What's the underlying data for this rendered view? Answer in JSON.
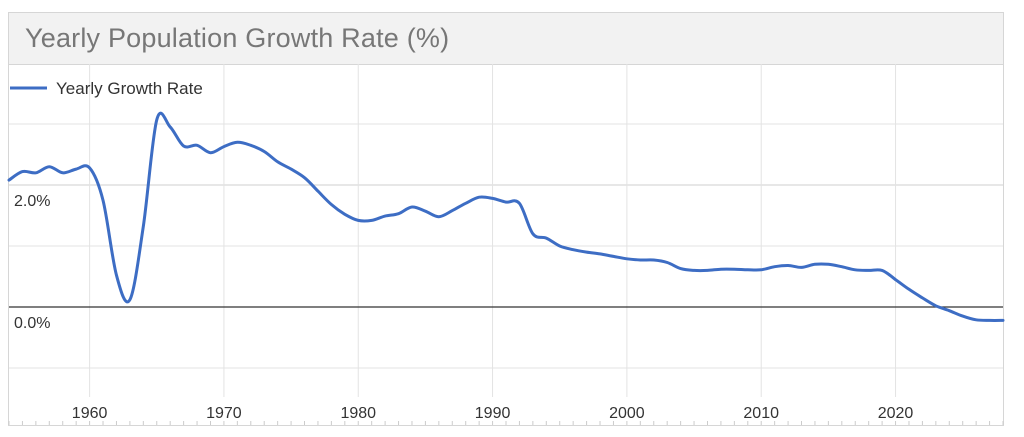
{
  "title": "Yearly Population Growth Rate (%)",
  "colors": {
    "line": "#3d6dc4",
    "grid": "#e3e3e3",
    "grid_major": "#cfcfcf",
    "zero_line": "#333333",
    "text": "#333333"
  },
  "chart_data": {
    "type": "line",
    "title": "Yearly Population Growth Rate (%)",
    "xlabel": "",
    "ylabel": "",
    "legend": {
      "position": "top-left",
      "entries": [
        "Yearly Growth Rate"
      ]
    },
    "grid": true,
    "xlim": [
      1954,
      2028
    ],
    "ylim": [
      -1.0,
      3.1
    ],
    "x_ticks": [
      1960,
      1970,
      1980,
      1990,
      2000,
      2010,
      2020
    ],
    "y_ticks_labeled": [
      {
        "value": 2.0,
        "label": "2.0%"
      },
      {
        "value": 0.0,
        "label": "0.0%"
      }
    ],
    "y_gridlines": [
      -1.0,
      0.0,
      1.0,
      2.0,
      3.0
    ],
    "series": [
      {
        "name": "Yearly Growth Rate",
        "x": [
          1954,
          1955,
          1956,
          1957,
          1958,
          1959,
          1960,
          1961,
          1962,
          1963,
          1964,
          1965,
          1966,
          1967,
          1968,
          1969,
          1970,
          1971,
          1972,
          1973,
          1974,
          1975,
          1976,
          1977,
          1978,
          1979,
          1980,
          1981,
          1982,
          1983,
          1984,
          1985,
          1986,
          1987,
          1988,
          1989,
          1990,
          1991,
          1992,
          1993,
          1994,
          1995,
          1996,
          1997,
          1998,
          1999,
          2000,
          2001,
          2002,
          2003,
          2004,
          2005,
          2006,
          2007,
          2008,
          2009,
          2010,
          2011,
          2012,
          2013,
          2014,
          2015,
          2016,
          2017,
          2018,
          2019,
          2020,
          2021,
          2022,
          2023,
          2024,
          2025,
          2026,
          2027,
          2028
        ],
        "values": [
          2.08,
          2.22,
          2.2,
          2.3,
          2.2,
          2.26,
          2.28,
          1.75,
          0.52,
          0.12,
          1.32,
          3.07,
          2.95,
          2.64,
          2.65,
          2.53,
          2.63,
          2.7,
          2.65,
          2.55,
          2.38,
          2.26,
          2.12,
          1.9,
          1.68,
          1.52,
          1.42,
          1.42,
          1.49,
          1.53,
          1.64,
          1.57,
          1.48,
          1.58,
          1.7,
          1.8,
          1.78,
          1.72,
          1.7,
          1.2,
          1.13,
          1.0,
          0.94,
          0.9,
          0.87,
          0.83,
          0.79,
          0.77,
          0.77,
          0.73,
          0.63,
          0.6,
          0.6,
          0.62,
          0.62,
          0.61,
          0.61,
          0.66,
          0.68,
          0.65,
          0.7,
          0.7,
          0.66,
          0.61,
          0.6,
          0.6,
          0.45,
          0.29,
          0.15,
          0.02,
          -0.06,
          -0.15,
          -0.21,
          -0.22,
          -0.22
        ]
      }
    ]
  }
}
